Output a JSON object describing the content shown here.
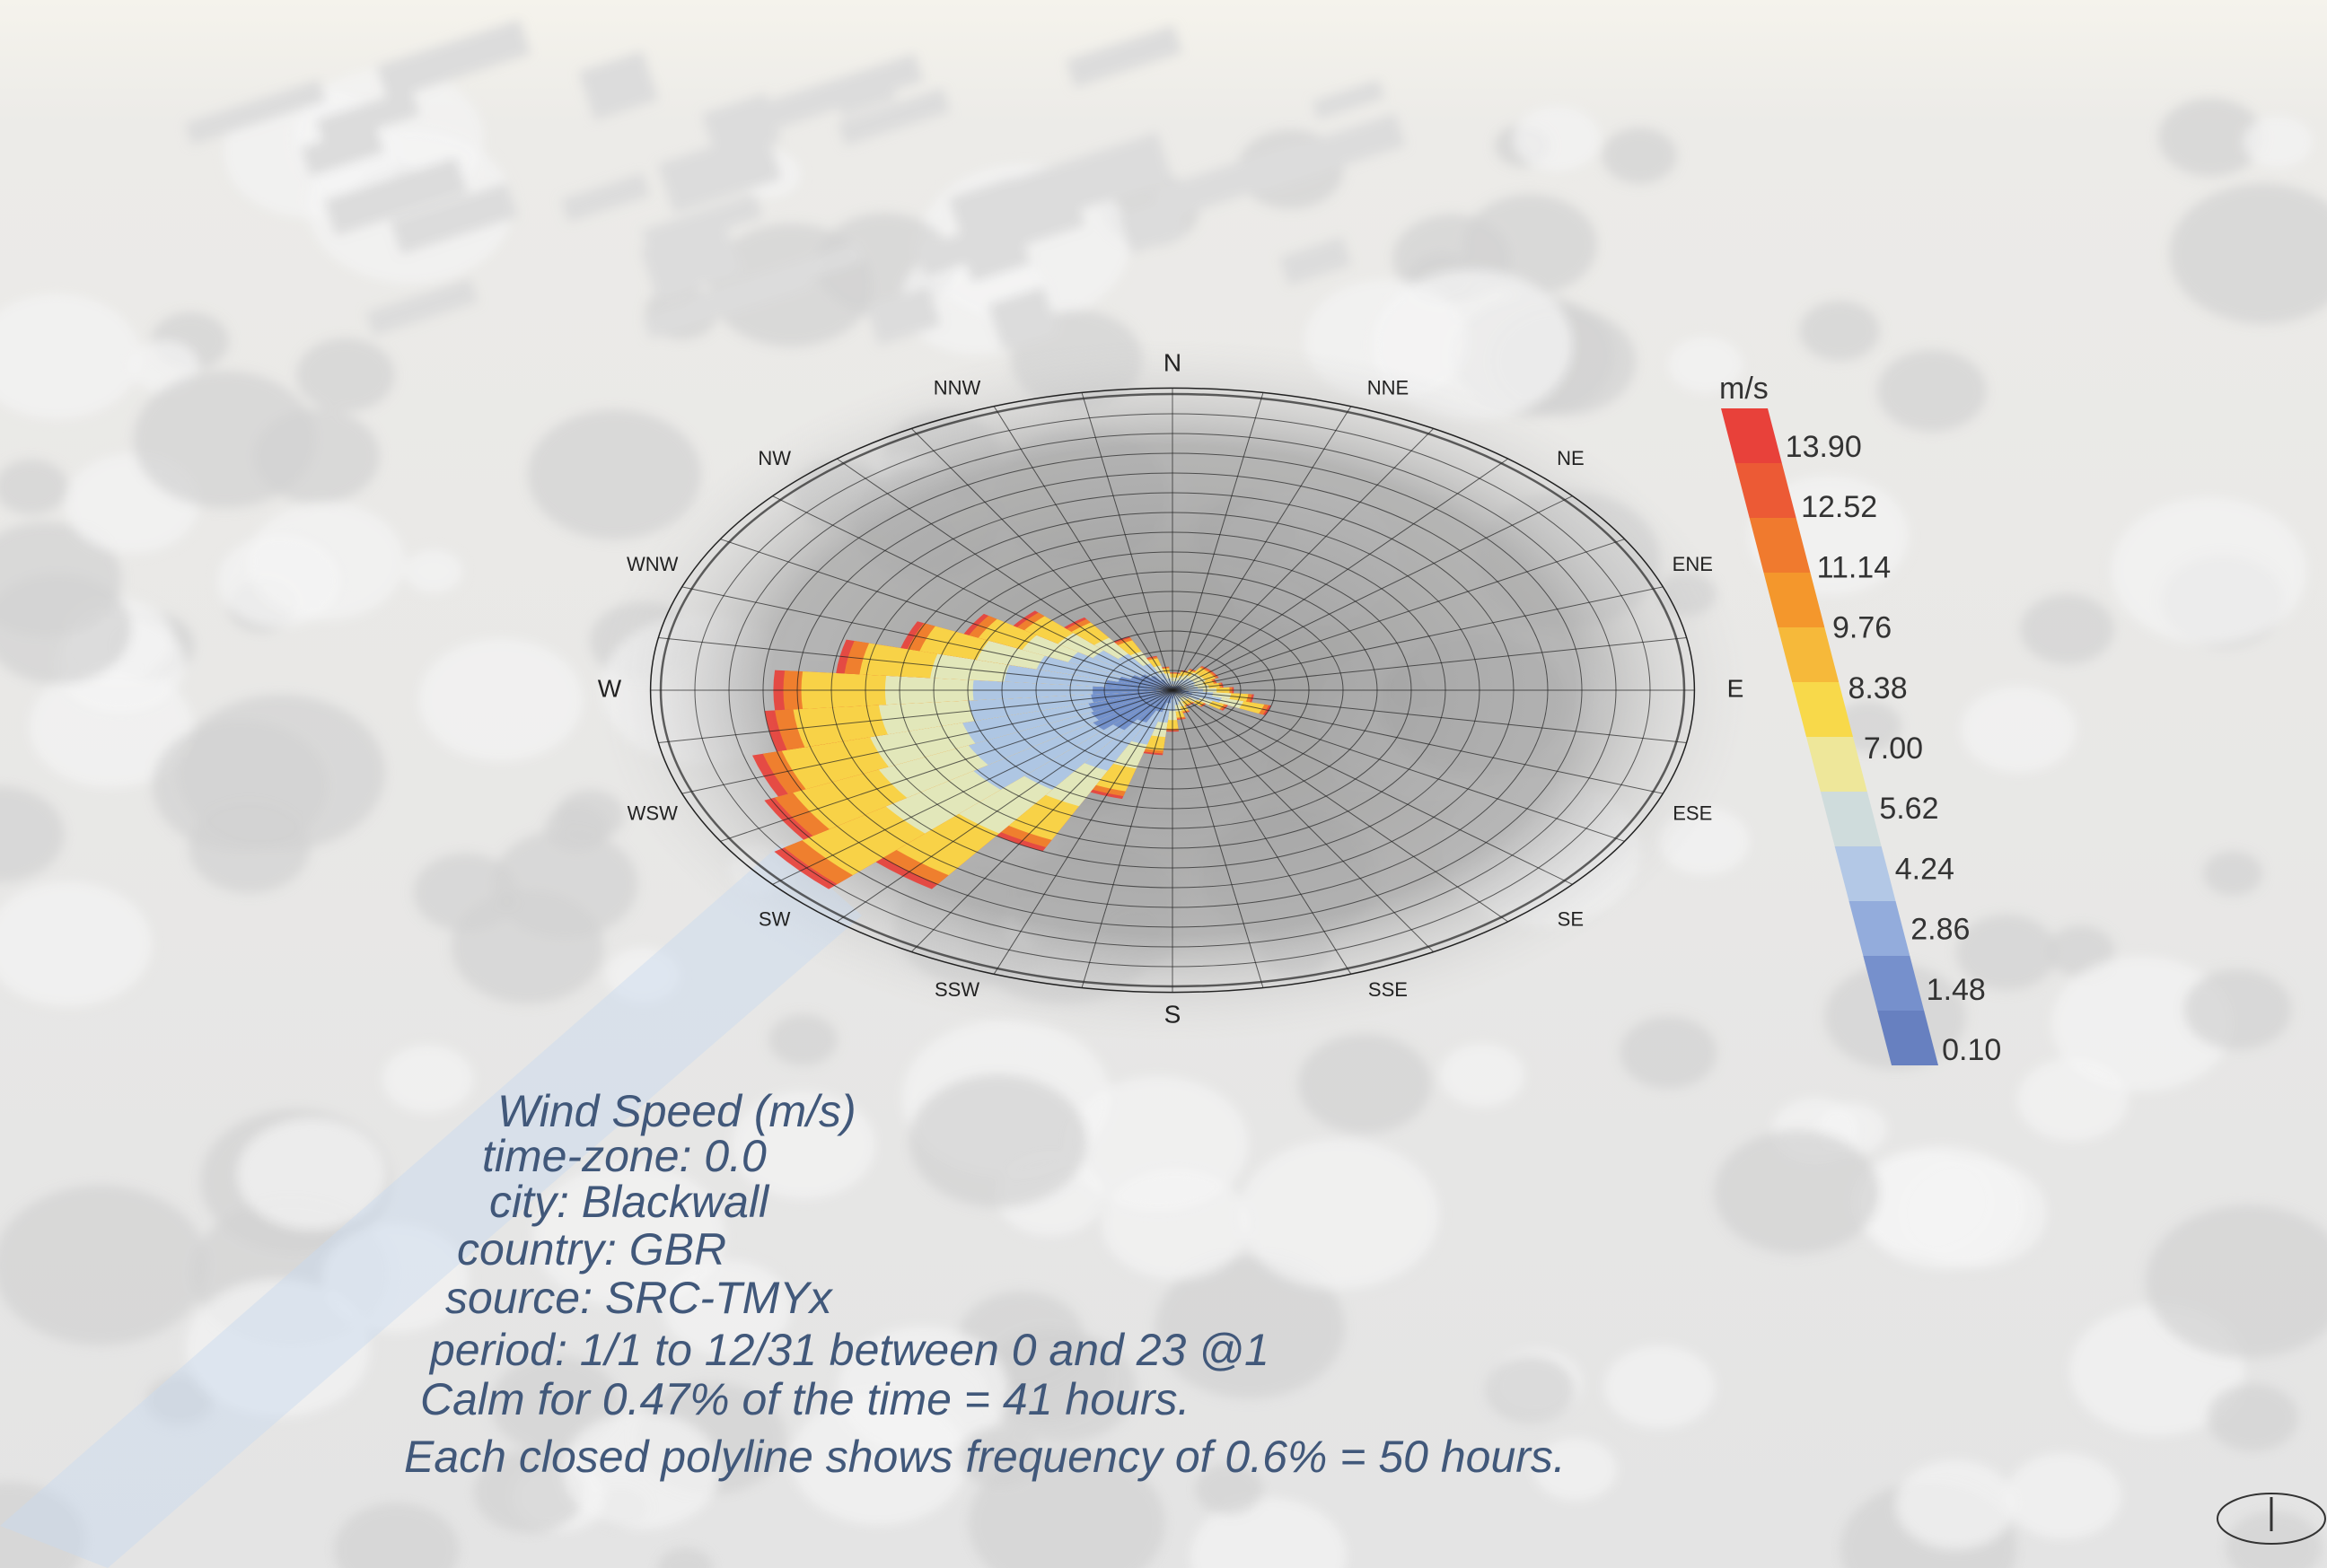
{
  "compass": {
    "labels": [
      "N",
      "NNE",
      "NE",
      "ENE",
      "E",
      "ESE",
      "SE",
      "SSE",
      "S",
      "SSW",
      "SW",
      "WSW",
      "W",
      "WNW",
      "NW",
      "NNW"
    ]
  },
  "legend": {
    "title": "m/s",
    "labels": [
      "13.90",
      "12.52",
      "11.14",
      "9.76",
      "8.38",
      "7.00",
      "5.62",
      "4.24",
      "2.86",
      "1.48",
      "0.10"
    ]
  },
  "info": {
    "lines": [
      "Wind Speed (m/s)",
      "time-zone: 0.0",
      "city: Blackwall",
      "country: GBR",
      "source: SRC-TMYx",
      "period: 1/1 to 12/31 between 0 and 23 @1",
      "Calm for 0.47% of the time = 41 hours.",
      "Each closed polyline shows frequency of 0.6% = 50 hours."
    ]
  }
}
